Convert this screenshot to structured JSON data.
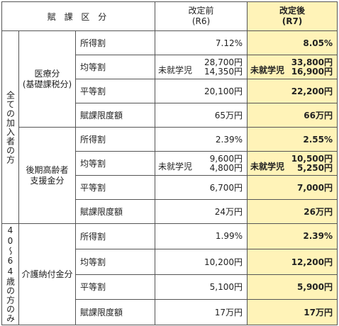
{
  "header": {
    "category": "賦 課 区 分",
    "old_title": "改定前",
    "old_sub": "(R6)",
    "new_title": "改定後",
    "new_sub": "(R7)"
  },
  "groups": {
    "all": "全ての加入者の方",
    "age": "40〜64歳の方のみ"
  },
  "categories": {
    "medical_1": "医療分",
    "medical_2": "(基礎課税分)",
    "elderly_1": "後期高齢者",
    "elderly_2": "支援金分",
    "care": "介護納付金分"
  },
  "pre_school_label": "未就学児",
  "rows": [
    {
      "label": "所得割",
      "old": "7.12%",
      "new": "8.05%"
    },
    {
      "label": "均等割",
      "old": "28,700円",
      "old2": "14,350円",
      "new": "33,800円",
      "new2": "16,900円"
    },
    {
      "label": "平等割",
      "old": "20,100円",
      "new": "22,200円"
    },
    {
      "label": "賦課限度額",
      "old": "65万円",
      "new": "66万円"
    },
    {
      "label": "所得割",
      "old": "2.39%",
      "new": "2.55%"
    },
    {
      "label": "均等割",
      "old": "9,600円",
      "old2": "4,800円",
      "new": "10,500円",
      "new2": "5,250円"
    },
    {
      "label": "平等割",
      "old": "6,700円",
      "new": "7,000円"
    },
    {
      "label": "賦課限度額",
      "old": "24万円",
      "new": "26万円"
    },
    {
      "label": "所得割",
      "old": "1.99%",
      "new": "2.39%"
    },
    {
      "label": "均等割",
      "old": "10,200円",
      "new": "12,200円"
    },
    {
      "label": "平等割",
      "old": "5,100円",
      "new": "5,900円"
    },
    {
      "label": "賦課限度額",
      "old": "17万円",
      "new": "17万円"
    }
  ],
  "colors": {
    "highlight": "#fff3b8",
    "border": "#555555"
  }
}
